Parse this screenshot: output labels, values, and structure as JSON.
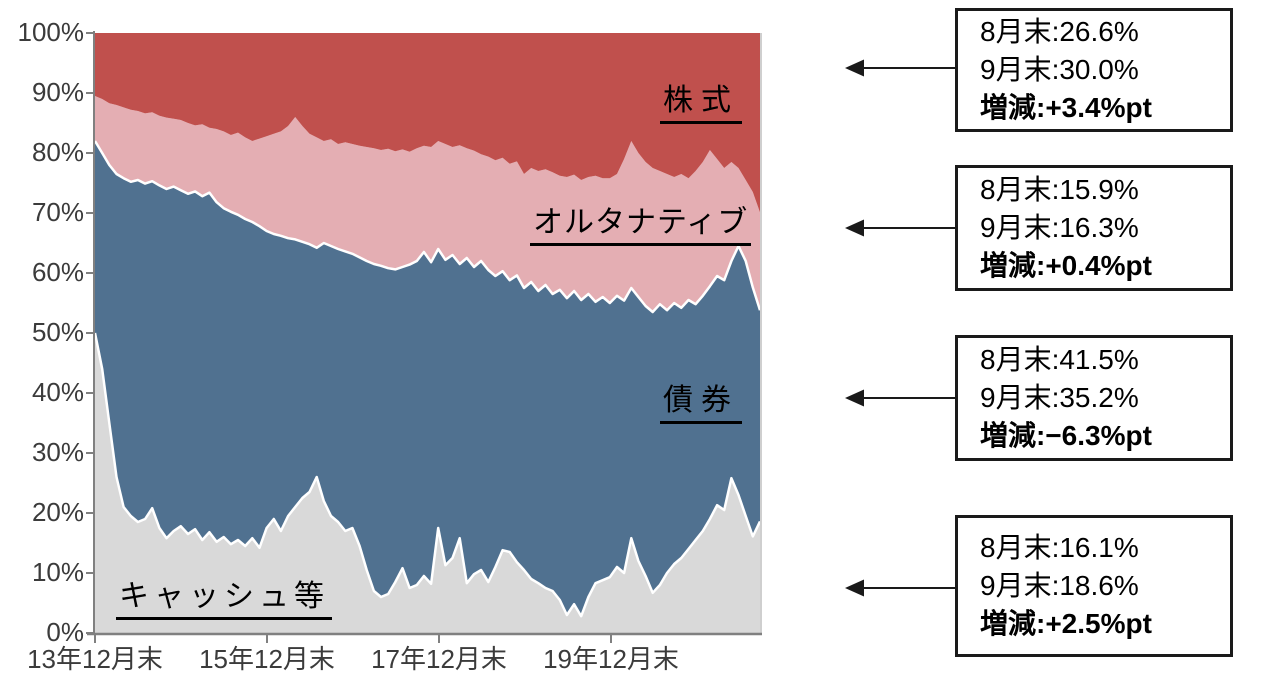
{
  "chart": {
    "y_axis_labels": [
      "0%",
      "10%",
      "20%",
      "30%",
      "40%",
      "50%",
      "60%",
      "70%",
      "80%",
      "90%",
      "100%"
    ],
    "x_axis_labels": [
      "13年12月末",
      "15年12月末",
      "17年12月末",
      "19年12月末"
    ],
    "series_labels": {
      "stocks": "株式",
      "alternatives": "オルタナティブ",
      "bonds": "債券",
      "cash": "キャッシュ等"
    },
    "colors": {
      "stocks": "#C0504D",
      "alternatives": "#E4AEB3",
      "bonds": "#507190",
      "cash": "#D9D9D9",
      "boundary_stroke": "#FFFFFF",
      "axis": "#808080",
      "frame": "#BFBFBF",
      "arrow": "#1a1a1a"
    }
  },
  "chart_data": {
    "type": "area",
    "stacked": true,
    "unit": "%",
    "ylim": [
      0,
      100
    ],
    "x_tick_labels": [
      "13年12月末",
      "15年12月末",
      "17年12月末",
      "19年12月末"
    ],
    "points_per_series": 94,
    "series": [
      {
        "name": "キャッシュ等",
        "color": "#D9D9D9",
        "values": [
          50.0,
          44.0,
          35.0,
          26.0,
          21.0,
          19.5,
          18.5,
          19.0,
          20.8,
          17.5,
          15.8,
          17.0,
          17.8,
          16.5,
          17.3,
          15.5,
          16.8,
          15.2,
          16.0,
          14.8,
          15.5,
          14.5,
          15.8,
          14.2,
          17.5,
          19.0,
          17.0,
          19.5,
          21.0,
          22.5,
          23.5,
          26.0,
          22.0,
          19.5,
          18.5,
          17.0,
          17.5,
          14.5,
          10.5,
          7.0,
          6.0,
          6.5,
          8.5,
          10.8,
          7.5,
          8.0,
          9.5,
          8.2,
          17.5,
          11.3,
          12.5,
          15.8,
          8.3,
          9.8,
          10.5,
          8.5,
          11.0,
          13.8,
          13.5,
          11.8,
          10.5,
          9.0,
          8.3,
          7.5,
          7.0,
          5.5,
          3.0,
          4.8,
          2.8,
          6.0,
          8.3,
          8.8,
          9.3,
          11.0,
          10.0,
          15.8,
          12.0,
          9.5,
          6.7,
          8.0,
          10.0,
          11.5,
          12.5,
          14.0,
          15.5,
          17.0,
          19.0,
          21.3,
          20.5,
          25.8,
          23.0,
          19.5,
          16.1,
          18.6
        ]
      },
      {
        "name": "債券",
        "color": "#507190",
        "values": [
          32.0,
          36.0,
          43.0,
          50.5,
          54.8,
          55.7,
          57.0,
          55.9,
          54.5,
          57.1,
          58.2,
          57.4,
          56.0,
          56.7,
          56.3,
          57.3,
          56.6,
          56.6,
          54.8,
          55.4,
          54.2,
          54.5,
          52.7,
          53.6,
          49.5,
          47.5,
          49.2,
          46.3,
          44.6,
          42.7,
          41.3,
          38.2,
          43.0,
          45.0,
          45.5,
          46.6,
          45.7,
          48.1,
          51.5,
          54.5,
          55.2,
          54.3,
          52.1,
          50.2,
          53.9,
          54.0,
          54.0,
          53.6,
          46.5,
          50.9,
          50.5,
          45.7,
          54.2,
          51.2,
          51.5,
          52.0,
          48.5,
          46.5,
          45.3,
          47.8,
          47.0,
          49.5,
          48.7,
          50.5,
          49.5,
          51.7,
          52.8,
          52.2,
          52.7,
          50.5,
          46.9,
          47.2,
          45.7,
          45.2,
          45.4,
          41.7,
          44.0,
          45.0,
          46.8,
          46.8,
          43.8,
          43.5,
          41.7,
          41.5,
          39.3,
          39.2,
          38.8,
          38.2,
          38.3,
          36.2,
          41.5,
          42.5,
          41.5,
          35.2
        ]
      },
      {
        "name": "オルタナティブ",
        "color": "#E4AEB3",
        "values": [
          7.5,
          9.0,
          10.3,
          11.5,
          11.8,
          12.0,
          11.5,
          11.7,
          11.5,
          11.6,
          11.9,
          11.3,
          11.7,
          11.8,
          11.0,
          12.0,
          10.8,
          12.2,
          12.8,
          12.8,
          13.7,
          13.6,
          13.5,
          14.6,
          15.8,
          16.7,
          17.4,
          18.7,
          20.4,
          19.3,
          18.4,
          18.4,
          17.0,
          17.8,
          17.5,
          18.2,
          18.3,
          18.6,
          19.0,
          19.3,
          19.3,
          19.9,
          19.7,
          19.6,
          18.8,
          18.8,
          17.7,
          19.2,
          18.0,
          19.3,
          18.0,
          19.8,
          18.3,
          19.4,
          17.8,
          18.9,
          19.3,
          18.9,
          19.4,
          19.0,
          19.0,
          19.0,
          20.0,
          19.3,
          20.3,
          19.0,
          20.2,
          19.4,
          20.0,
          19.5,
          21.0,
          19.8,
          20.8,
          20.3,
          23.6,
          24.5,
          24.0,
          24.0,
          24.0,
          22.2,
          22.7,
          21.0,
          22.3,
          20.3,
          22.2,
          22.3,
          22.7,
          19.5,
          18.7,
          16.5,
          13.0,
          13.5,
          15.9,
          16.3
        ]
      },
      {
        "name": "株式",
        "color": "#C0504D",
        "values": [
          10.5,
          11.0,
          11.7,
          12.0,
          12.4,
          12.8,
          13.0,
          13.4,
          13.2,
          13.8,
          14.1,
          14.3,
          14.5,
          15.0,
          15.4,
          15.2,
          15.8,
          16.0,
          16.4,
          17.0,
          16.6,
          17.4,
          18.0,
          17.6,
          17.2,
          16.8,
          16.4,
          15.5,
          14.0,
          15.5,
          16.8,
          17.4,
          18.0,
          17.7,
          18.5,
          18.2,
          18.5,
          18.8,
          19.0,
          19.2,
          19.5,
          19.3,
          19.7,
          19.4,
          19.8,
          19.2,
          18.8,
          19.0,
          18.0,
          18.5,
          19.0,
          18.7,
          19.2,
          19.6,
          20.2,
          20.6,
          21.2,
          20.8,
          21.8,
          21.4,
          23.5,
          22.5,
          23.0,
          22.7,
          23.2,
          23.8,
          24.0,
          23.6,
          24.5,
          24.0,
          23.8,
          24.2,
          24.2,
          23.5,
          21.0,
          18.0,
          20.0,
          21.5,
          22.5,
          23.0,
          23.5,
          24.0,
          23.5,
          24.2,
          23.0,
          21.5,
          19.5,
          21.0,
          22.5,
          21.5,
          22.5,
          24.5,
          26.6,
          30.0
        ]
      }
    ]
  },
  "annotations": [
    {
      "target": "株式",
      "lines": [
        "8月末:26.6%",
        "9月末:30.0%",
        "増減:+3.4%pt"
      ]
    },
    {
      "target": "オルタナティブ",
      "lines": [
        "8月末:15.9%",
        "9月末:16.3%",
        "増減:+0.4%pt"
      ]
    },
    {
      "target": "債券",
      "lines": [
        "8月末:41.5%",
        "9月末:35.2%",
        "増減:−6.3%pt"
      ]
    },
    {
      "target": "キャッシュ等",
      "lines": [
        "8月末:16.1%",
        "9月末:18.6%",
        "増減:+2.5%pt"
      ]
    }
  ]
}
